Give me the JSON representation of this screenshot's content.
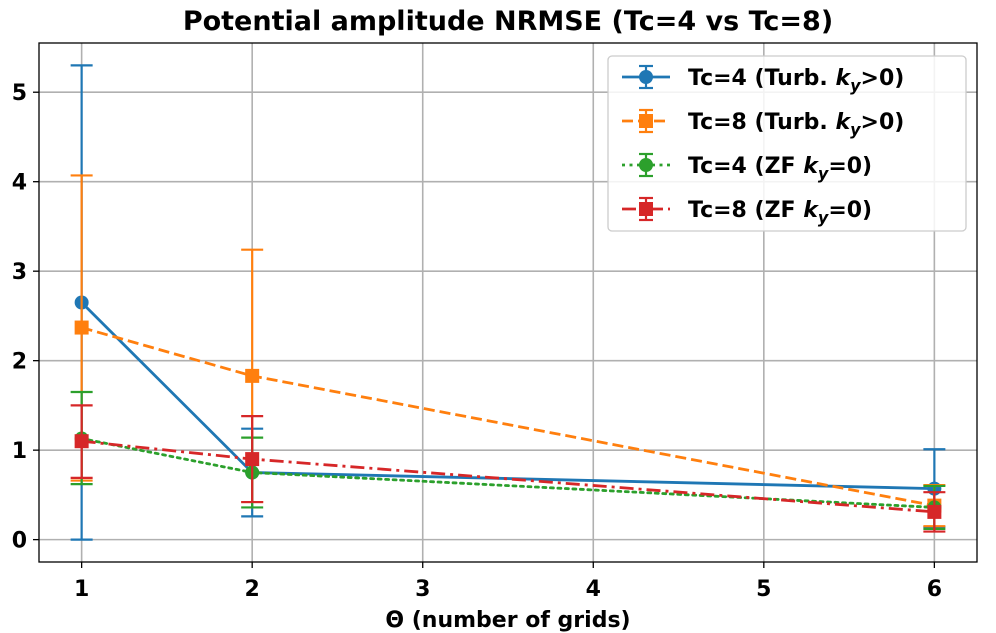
{
  "chart_data": {
    "type": "line",
    "title": "Potential amplitude NRMSE (Tc=4 vs Tc=8)",
    "xlabel": "Θ (number of grids)",
    "ylabel": "",
    "xlim": [
      0.75,
      6.25
    ],
    "ylim": [
      -0.25,
      5.55
    ],
    "xticks": [
      1,
      2,
      3,
      4,
      5,
      6
    ],
    "yticks": [
      0,
      1,
      2,
      3,
      4,
      5
    ],
    "grid": true,
    "legend_position": "top-right",
    "series": [
      {
        "name": "Tc=4 (Turb. ky > 0)",
        "legend_prefix": "Tc=4 (Turb. ",
        "legend_math": "k_y > 0",
        "color": "#1f77b4",
        "linestyle": "solid",
        "marker": "circle",
        "x": [
          1,
          2,
          6
        ],
        "y": [
          2.65,
          0.75,
          0.57
        ],
        "yerr_low": [
          0.0,
          0.26,
          0.14
        ],
        "yerr_high": [
          5.3,
          1.24,
          1.01
        ]
      },
      {
        "name": "Tc=8 (Turb. ky > 0)",
        "legend_prefix": "Tc=8 (Turb. ",
        "legend_math": "k_y > 0",
        "color": "#ff7f0e",
        "linestyle": "dashed",
        "marker": "square",
        "x": [
          1,
          2,
          6
        ],
        "y": [
          2.37,
          1.83,
          0.38
        ],
        "yerr_low": [
          0.66,
          0.42,
          0.15
        ],
        "yerr_high": [
          4.07,
          3.24,
          0.61
        ]
      },
      {
        "name": "Tc=4 (ZF ky = 0)",
        "legend_prefix": "Tc=4 (ZF ",
        "legend_math": "k_y = 0",
        "color": "#2ca02c",
        "linestyle": "dotted",
        "marker": "circle",
        "x": [
          1,
          2,
          6
        ],
        "y": [
          1.13,
          0.75,
          0.36
        ],
        "yerr_low": [
          0.62,
          0.36,
          0.12
        ],
        "yerr_high": [
          1.65,
          1.14,
          0.6
        ]
      },
      {
        "name": "Tc=8 (ZF ky = 0)",
        "legend_prefix": "Tc=8 (ZF ",
        "legend_math": "k_y = 0",
        "color": "#d62728",
        "linestyle": "dashdot",
        "marker": "square",
        "x": [
          1,
          2,
          6
        ],
        "y": [
          1.1,
          0.9,
          0.31
        ],
        "yerr_low": [
          0.69,
          0.42,
          0.09
        ],
        "yerr_high": [
          1.5,
          1.38,
          0.53
        ]
      }
    ]
  }
}
